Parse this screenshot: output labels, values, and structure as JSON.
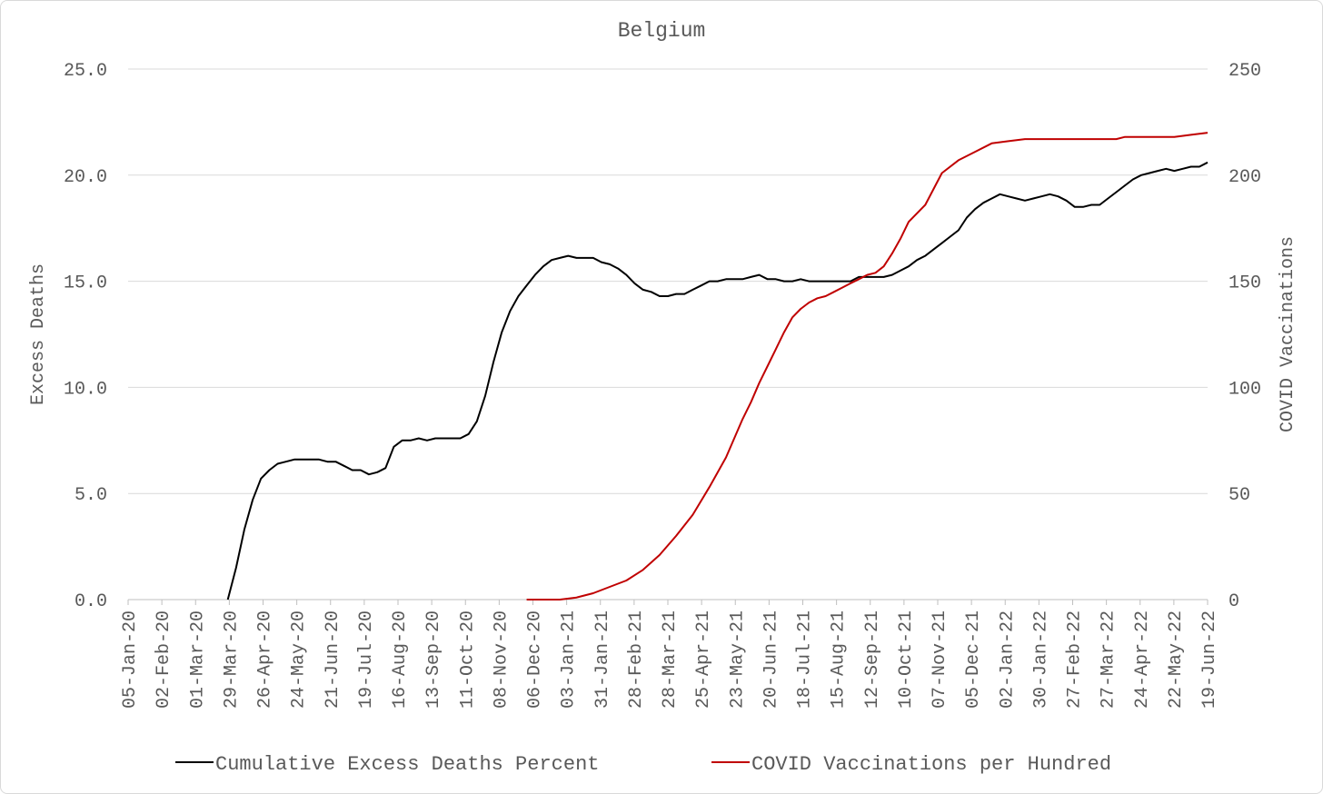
{
  "chart_data": {
    "type": "line",
    "title": "Belgium",
    "xlabel": "",
    "ylabel": "Excess Deaths",
    "y2label": "COVID Vaccinations",
    "ylim": [
      0,
      25
    ],
    "y2lim": [
      0,
      250
    ],
    "yticks": [
      "0.0",
      "5.0",
      "10.0",
      "15.0",
      "20.0",
      "25.0"
    ],
    "y2ticks": [
      "0",
      "50",
      "100",
      "150",
      "200",
      "250"
    ],
    "xticks": [
      "05-Jan-20",
      "02-Feb-20",
      "01-Mar-20",
      "29-Mar-20",
      "26-Apr-20",
      "24-May-20",
      "21-Jun-20",
      "19-Jul-20",
      "16-Aug-20",
      "13-Sep-20",
      "11-Oct-20",
      "08-Nov-20",
      "06-Dec-20",
      "03-Jan-21",
      "31-Jan-21",
      "28-Feb-21",
      "28-Mar-21",
      "25-Apr-21",
      "23-May-21",
      "20-Jun-21",
      "18-Jul-21",
      "15-Aug-21",
      "12-Sep-21",
      "10-Oct-21",
      "07-Nov-21",
      "05-Dec-21",
      "02-Jan-22",
      "30-Jan-22",
      "27-Feb-22",
      "27-Mar-22",
      "24-Apr-22",
      "22-May-22",
      "19-Jun-22"
    ],
    "grid": true,
    "legend_position": "bottom",
    "series": [
      {
        "name": "Cumulative Excess Deaths Percent",
        "axis": "left",
        "color": "#000000",
        "x": [
          12,
          13,
          14,
          15,
          16,
          17,
          18,
          19,
          20,
          21,
          22,
          23,
          24,
          25,
          26,
          27,
          28,
          29,
          30,
          31,
          32,
          33,
          34,
          35,
          36,
          37,
          38,
          39,
          40,
          41,
          42,
          43,
          44,
          45,
          46,
          47,
          48,
          49,
          50,
          51,
          52,
          53,
          54,
          55,
          56,
          57,
          58,
          59,
          60,
          61,
          62,
          63,
          64,
          65,
          66,
          67,
          68,
          69,
          70,
          71,
          72,
          73,
          74,
          75,
          76,
          77,
          78,
          79,
          80,
          81,
          82,
          83,
          84,
          85,
          86,
          87,
          88,
          89,
          90,
          91,
          92,
          93,
          94,
          95,
          96,
          97,
          98,
          99,
          100,
          101,
          102,
          103,
          104,
          105,
          106,
          107,
          108,
          109,
          110,
          111,
          112,
          113,
          114,
          115,
          116,
          117,
          118,
          119,
          120,
          121,
          122,
          123,
          124,
          125,
          126,
          127,
          128,
          129,
          130
        ],
        "values": [
          0.0,
          1.5,
          3.3,
          4.7,
          5.7,
          6.1,
          6.4,
          6.5,
          6.6,
          6.6,
          6.6,
          6.6,
          6.5,
          6.5,
          6.3,
          6.1,
          6.1,
          5.9,
          6.0,
          6.2,
          7.2,
          7.5,
          7.5,
          7.6,
          7.5,
          7.6,
          7.6,
          7.6,
          7.6,
          7.8,
          8.4,
          9.6,
          11.2,
          12.6,
          13.6,
          14.3,
          14.8,
          15.3,
          15.7,
          16.0,
          16.1,
          16.2,
          16.1,
          16.1,
          16.1,
          15.9,
          15.8,
          15.6,
          15.3,
          14.9,
          14.6,
          14.5,
          14.3,
          14.3,
          14.4,
          14.4,
          14.6,
          14.8,
          15.0,
          15.0,
          15.1,
          15.1,
          15.1,
          15.2,
          15.3,
          15.1,
          15.1,
          15.0,
          15.0,
          15.1,
          15.0,
          15.0,
          15.0,
          15.0,
          15.0,
          15.0,
          15.2,
          15.2,
          15.2,
          15.2,
          15.3,
          15.5,
          15.7,
          16.0,
          16.2,
          16.5,
          16.8,
          17.1,
          17.4,
          18.0,
          18.4,
          18.7,
          18.9,
          19.1,
          19.0,
          18.9,
          18.8,
          18.9,
          19.0,
          19.1,
          19.0,
          18.8,
          18.5,
          18.5,
          18.6,
          18.6,
          18.9,
          19.2,
          19.5,
          19.8,
          20.0,
          20.1,
          20.2,
          20.3,
          20.2,
          20.3,
          20.4,
          20.4,
          20.6
        ]
      },
      {
        "name": "COVID Vaccinations per Hundred",
        "axis": "right",
        "color": "#c00000",
        "x": [
          48,
          50,
          52,
          54,
          56,
          58,
          60,
          62,
          64,
          66,
          68,
          70,
          72,
          74,
          75,
          76,
          77,
          78,
          79,
          80,
          81,
          82,
          83,
          84,
          85,
          86,
          87,
          88,
          89,
          90,
          91,
          92,
          93,
          94,
          96,
          98,
          100,
          102,
          104,
          106,
          108,
          110,
          111,
          112,
          113,
          114,
          115,
          116,
          117,
          118,
          119,
          120,
          122,
          124,
          126,
          128,
          130
        ],
        "values": [
          0,
          0,
          0,
          1,
          3,
          6,
          9,
          14,
          21,
          30,
          40,
          53,
          67,
          85,
          93,
          102,
          110,
          118,
          126,
          133,
          137,
          140,
          142,
          143,
          145,
          147,
          149,
          151,
          153,
          154,
          157,
          163,
          170,
          178,
          186,
          201,
          207,
          211,
          215,
          216,
          217,
          217,
          217,
          217,
          217,
          217,
          217,
          217,
          217,
          217,
          217,
          218,
          218,
          218,
          218,
          219,
          220
        ]
      }
    ]
  }
}
